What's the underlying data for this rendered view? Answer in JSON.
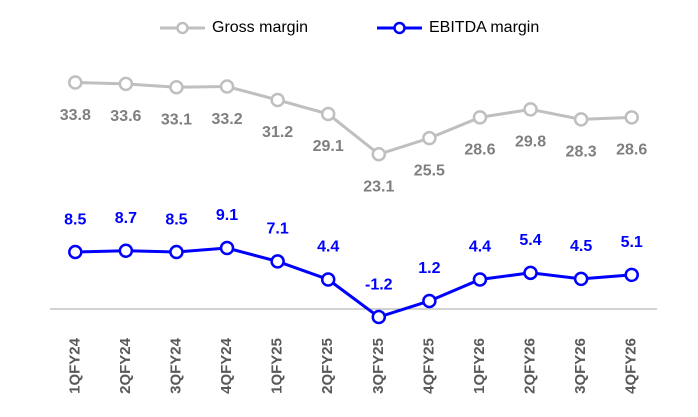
{
  "chart_data": {
    "type": "line",
    "categories": [
      "1QFY24",
      "2QFY24",
      "3QFY24",
      "4QFY24",
      "1QFY25",
      "2QFY25",
      "3QFY25",
      "4QFY25",
      "1QFY26",
      "2QFY26",
      "3QFY26",
      "4QFY26"
    ],
    "series": [
      {
        "name": "Gross margin",
        "color": "#bfbfbf",
        "label_color": "#7f7f7f",
        "label_position": "below",
        "values": [
          33.8,
          33.6,
          33.1,
          33.2,
          31.2,
          29.1,
          23.1,
          25.5,
          28.6,
          29.8,
          28.3,
          28.6
        ]
      },
      {
        "name": "EBITDA margin",
        "color": "#0000ff",
        "label_color": "#0000ff",
        "label_position": "above",
        "values": [
          8.5,
          8.7,
          8.5,
          9.1,
          7.1,
          4.4,
          -1.2,
          1.2,
          4.4,
          5.4,
          4.5,
          5.1
        ]
      }
    ],
    "ylim": [
      -3,
      40
    ],
    "legend": "top"
  }
}
